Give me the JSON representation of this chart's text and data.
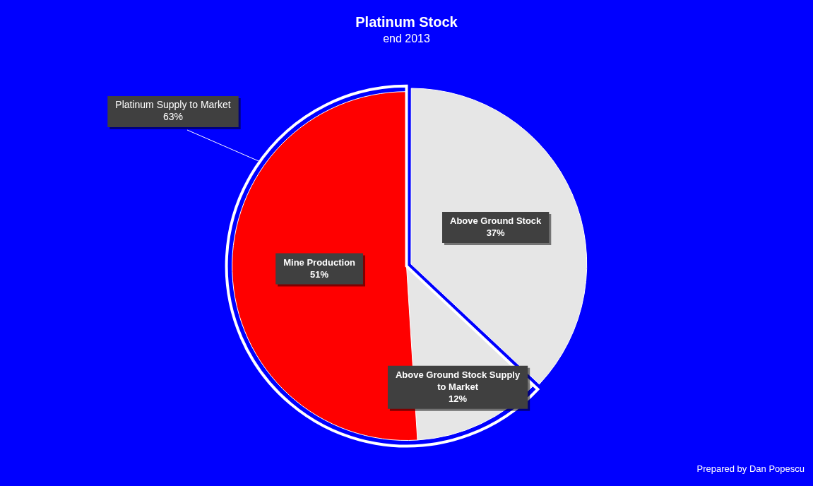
{
  "chart_data": {
    "type": "pie",
    "title": "Platinum Stock",
    "subtitle": "end 2013",
    "categories": [
      "Above Ground Stock",
      "Above Ground Stock Supply to Market",
      "Mine Production"
    ],
    "values": [
      37,
      12,
      51
    ],
    "colors": [
      "#e6e6e6",
      "#e6e6e6",
      "#ff0000"
    ],
    "value_labels": [
      "37%",
      "12%",
      "51%"
    ],
    "annotations": [
      "Platinum Supply to Market\n63%",
      "Prepared by Dan Popescu"
    ]
  }
}
